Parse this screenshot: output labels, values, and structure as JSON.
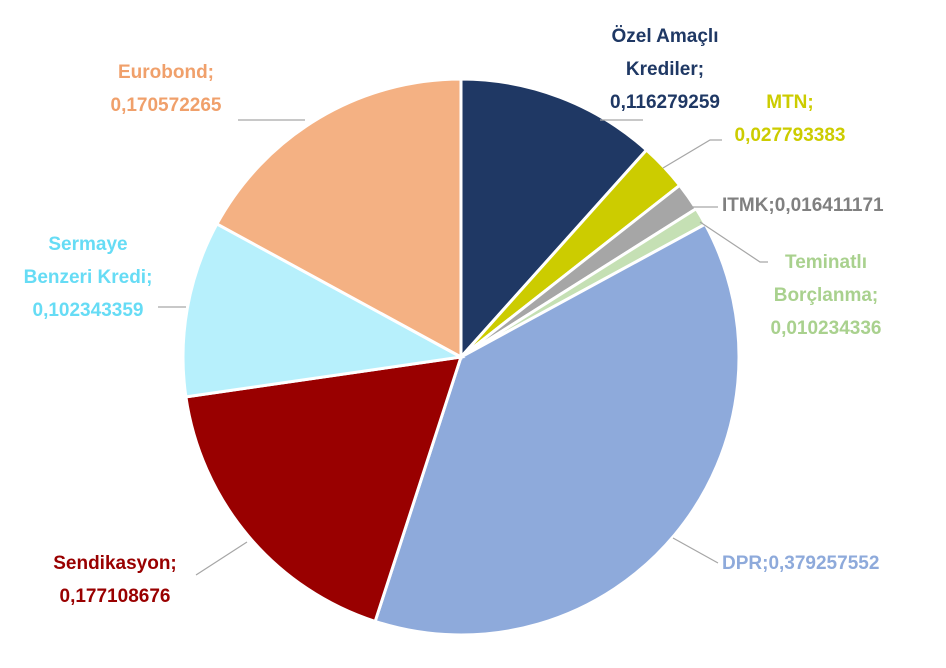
{
  "chart_data": {
    "type": "pie",
    "title": "",
    "start_angle_deg": 0,
    "direction": "clockwise",
    "slices": [
      {
        "name": "Özel Amaçlı Krediler",
        "value": 0.116279259,
        "color": "#1f3864",
        "label_lines": [
          "Özel Amaçlı",
          "Krediler;",
          "0,116279259"
        ]
      },
      {
        "name": "MTN",
        "value": 0.027793383,
        "color": "#cccc00",
        "label_lines": [
          "MTN;",
          "0,027793383"
        ]
      },
      {
        "name": "ITMK",
        "value": 0.016411171,
        "color": "#a6a6a6",
        "label_lines": [
          "ITMK;0,016411171"
        ],
        "label_color": "#808080"
      },
      {
        "name": "Teminatlı Borçlanma",
        "value": 0.010234336,
        "color": "#c5e0b4",
        "label_lines": [
          "Teminatlı",
          "Borçlanma;",
          "0,010234336"
        ],
        "label_color": "#a9d18e"
      },
      {
        "name": "DPR",
        "value": 0.379257552,
        "color": "#8eaadb",
        "label_lines": [
          "DPR;0,379257552"
        ]
      },
      {
        "name": "Sendikasyon",
        "value": 0.177108676,
        "color": "#990000",
        "label_lines": [
          "Sendikasyon;",
          "0,177108676"
        ]
      },
      {
        "name": "Sermaye Benzeri Kredi",
        "value": 0.102343359,
        "color": "#b7f0fc",
        "label_lines": [
          "Sermaye",
          "Benzeri Kredi;",
          "0,102343359"
        ],
        "label_color": "#66dcf5"
      },
      {
        "name": "Eurobond",
        "value": 0.170572265,
        "color": "#f4b183",
        "label_lines": [
          "Eurobond;",
          "0,170572265"
        ],
        "label_color": "#f0a06b"
      }
    ]
  }
}
